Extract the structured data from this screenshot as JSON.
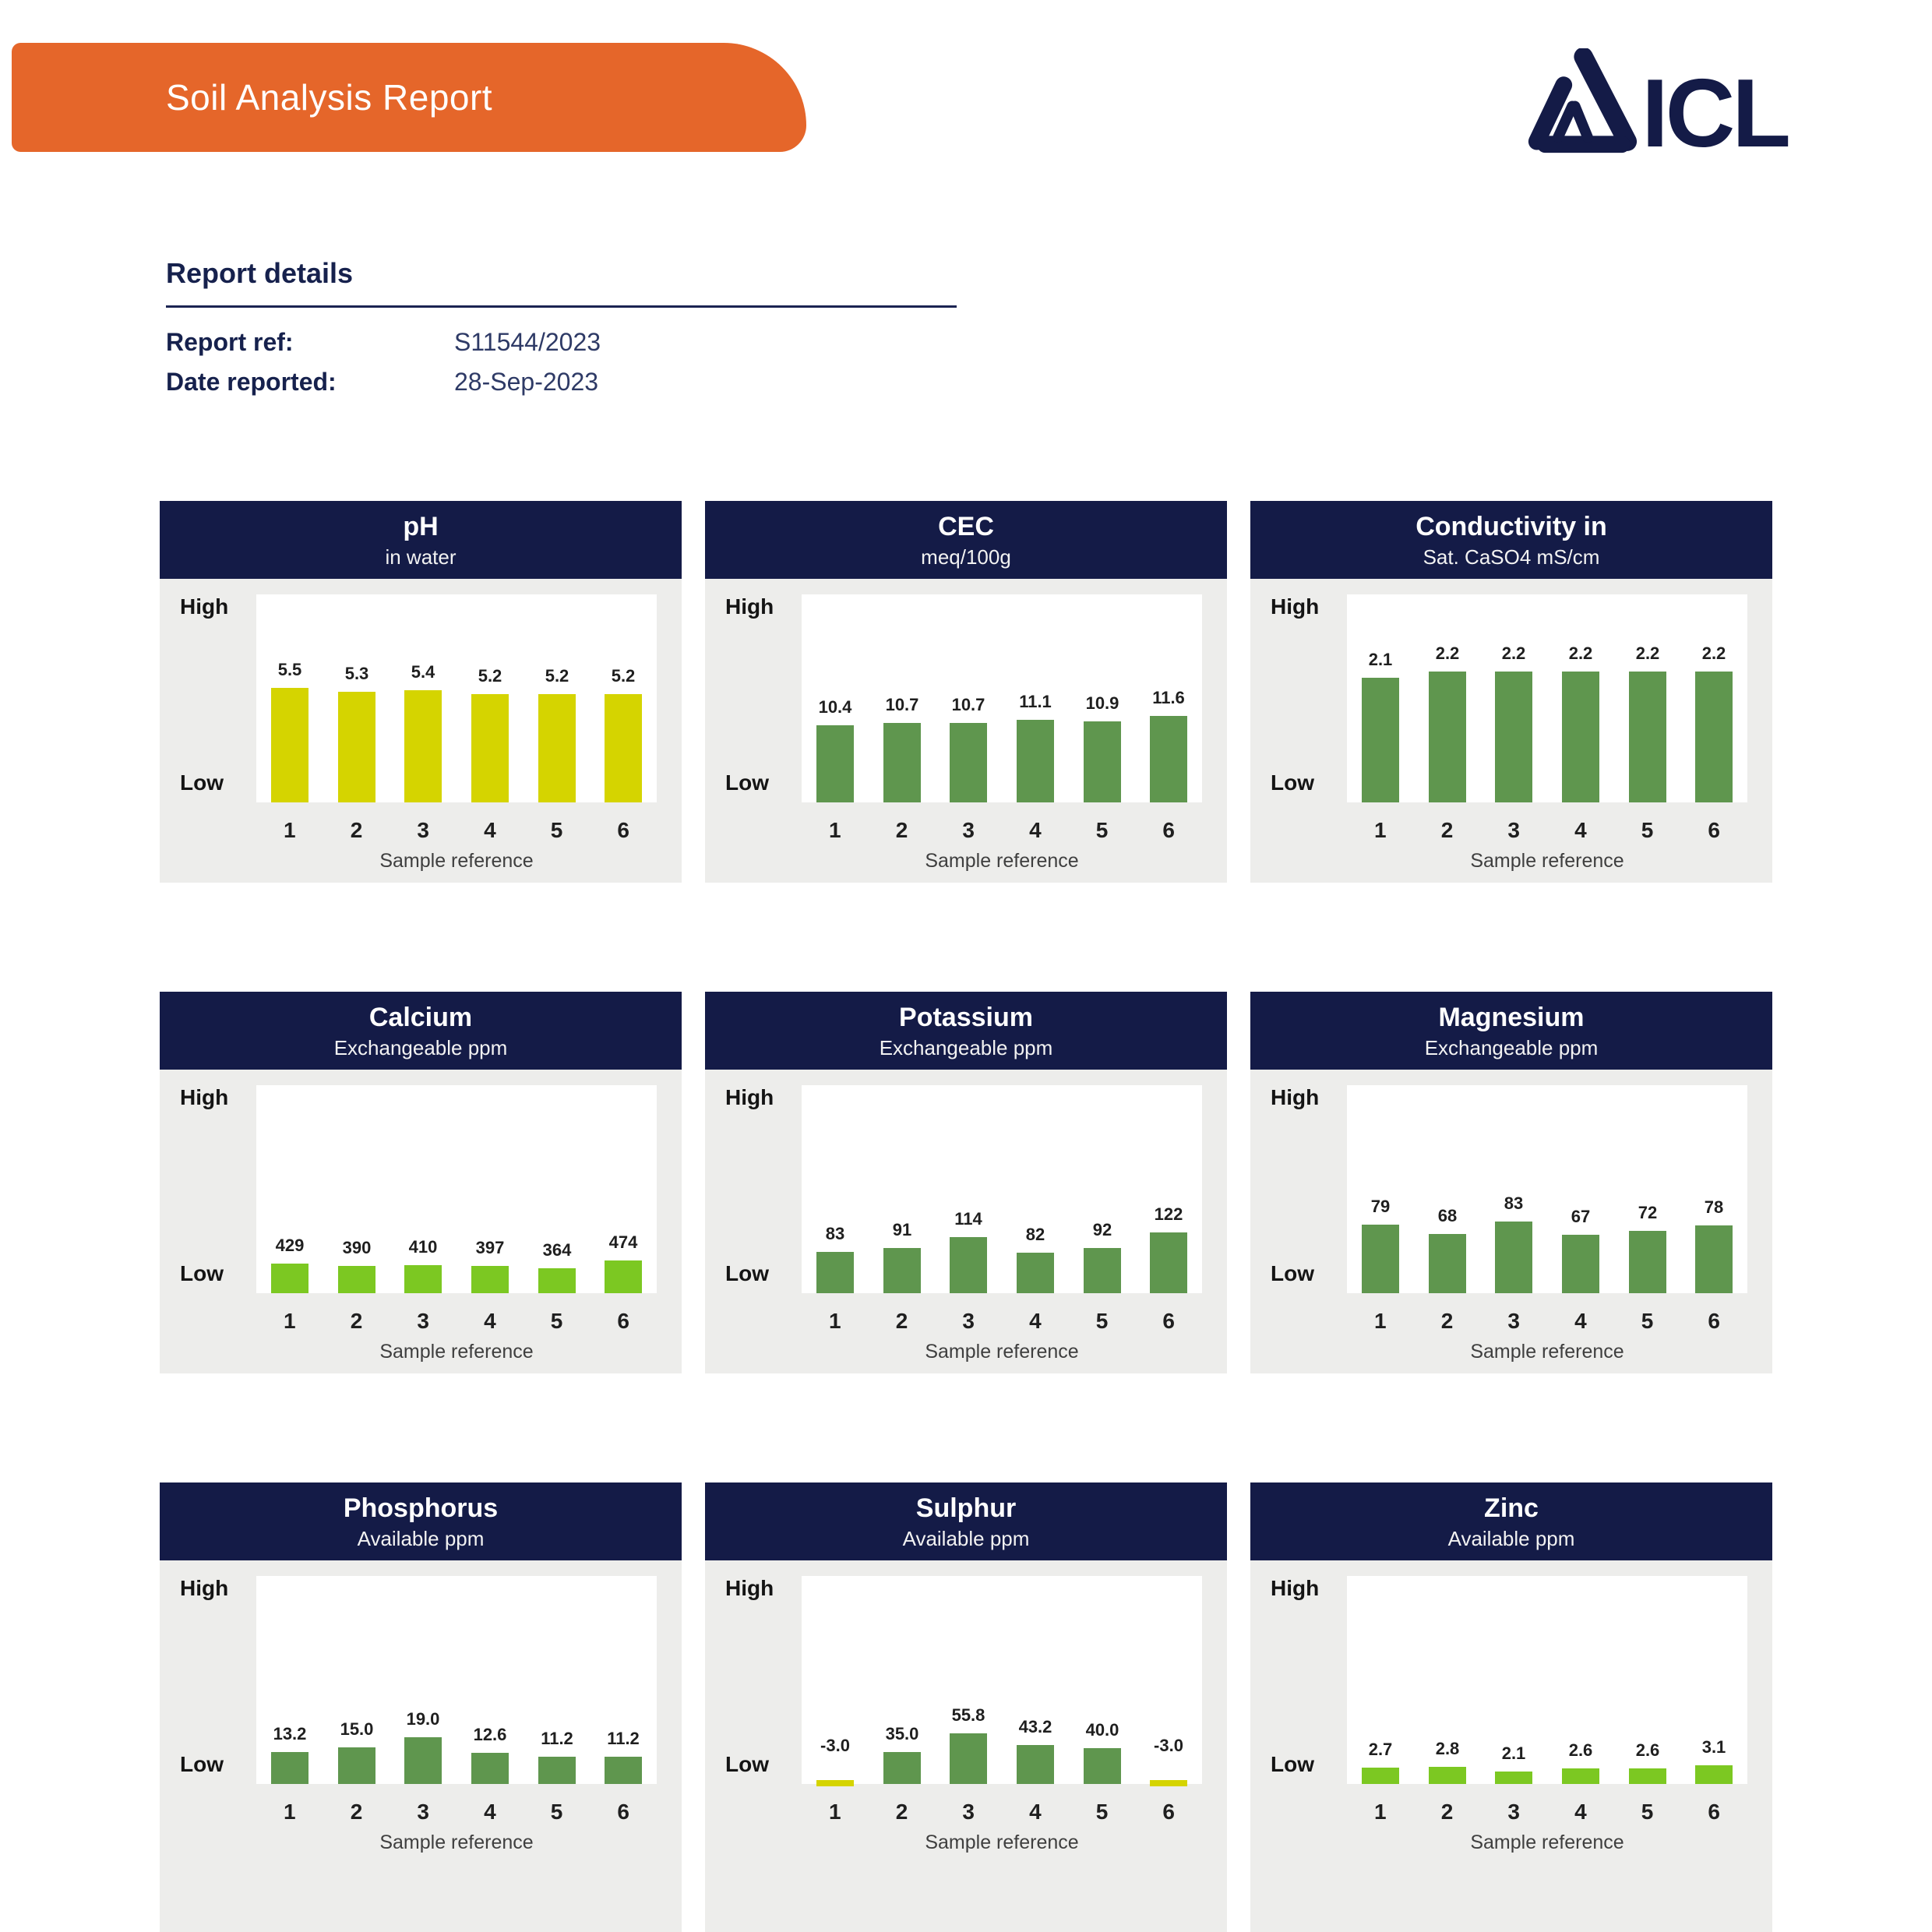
{
  "page": {
    "title": "Soil Analysis Report"
  },
  "logo": {
    "text": "ICL",
    "color": "#141B47"
  },
  "report_details": {
    "heading": "Report details",
    "fields": [
      {
        "label": "Report ref:",
        "value": "S11544/2023"
      },
      {
        "label": "Date reported:",
        "value": "28-Sep-2023"
      }
    ]
  },
  "axis": {
    "high": "High",
    "low": "Low",
    "xlabel": "Sample reference"
  },
  "colors": {
    "banner_orange": "#E5662A",
    "header_navy": "#141B47",
    "card_gray": "#EDEDEB",
    "green": "#5F964E",
    "lime": "#7CC822",
    "yellow": "#D5D400"
  },
  "chart_data": [
    {
      "type": "bar",
      "title": "pH",
      "subtitle": "in water",
      "categories": [
        "1",
        "2",
        "3",
        "4",
        "5",
        "6"
      ],
      "values": [
        5.5,
        5.3,
        5.4,
        5.2,
        5.2,
        5.2
      ],
      "labels": [
        "5.5",
        "5.3",
        "5.4",
        "5.2",
        "5.2",
        "5.2"
      ],
      "bar_color": "#D5D400",
      "scale_max": 10,
      "xlabel": "Sample reference",
      "y_axis_labels": [
        "Low",
        "High"
      ],
      "grid": false,
      "legend": false
    },
    {
      "type": "bar",
      "title": "CEC",
      "subtitle": "meq/100g",
      "categories": [
        "1",
        "2",
        "3",
        "4",
        "5",
        "6"
      ],
      "values": [
        10.4,
        10.7,
        10.7,
        11.1,
        10.9,
        11.6
      ],
      "labels": [
        "10.4",
        "10.7",
        "10.7",
        "11.1",
        "10.9",
        "11.6"
      ],
      "bar_color": "#5F964E",
      "scale_max": 28,
      "xlabel": "Sample reference",
      "y_axis_labels": [
        "Low",
        "High"
      ],
      "grid": false,
      "legend": false
    },
    {
      "type": "bar",
      "title": "Conductivity in",
      "subtitle": "Sat. CaSO4 mS/cm",
      "categories": [
        "1",
        "2",
        "3",
        "4",
        "5",
        "6"
      ],
      "values": [
        2.1,
        2.2,
        2.2,
        2.2,
        2.2,
        2.2
      ],
      "labels": [
        "2.1",
        "2.2",
        "2.2",
        "2.2",
        "2.2",
        "2.2"
      ],
      "bar_color": "#5F964E",
      "scale_max": 3.5,
      "xlabel": "Sample reference",
      "y_axis_labels": [
        "Low",
        "High"
      ],
      "grid": false,
      "legend": false
    },
    {
      "type": "bar",
      "title": "Calcium",
      "subtitle": "Exchangeable ppm",
      "categories": [
        "1",
        "2",
        "3",
        "4",
        "5",
        "6"
      ],
      "values": [
        429,
        390,
        410,
        397,
        364,
        474
      ],
      "labels": [
        "429",
        "390",
        "410",
        "397",
        "364",
        "474"
      ],
      "bar_color": "#7CC822",
      "scale_max": 3000,
      "xlabel": "Sample reference",
      "y_axis_labels": [
        "Low",
        "High"
      ],
      "grid": false,
      "legend": false
    },
    {
      "type": "bar",
      "title": "Potassium",
      "subtitle": "Exchangeable ppm",
      "categories": [
        "1",
        "2",
        "3",
        "4",
        "5",
        "6"
      ],
      "values": [
        83,
        91,
        114,
        82,
        92,
        122
      ],
      "labels": [
        "83",
        "91",
        "114",
        "82",
        "92",
        "122"
      ],
      "bar_color": "#5F964E",
      "scale_max": 420,
      "xlabel": "Sample reference",
      "y_axis_labels": [
        "Low",
        "High"
      ],
      "grid": false,
      "legend": false
    },
    {
      "type": "bar",
      "title": "Magnesium",
      "subtitle": "Exchangeable ppm",
      "categories": [
        "1",
        "2",
        "3",
        "4",
        "5",
        "6"
      ],
      "values": [
        79,
        68,
        83,
        67,
        72,
        78
      ],
      "labels": [
        "79",
        "68",
        "83",
        "67",
        "72",
        "78"
      ],
      "bar_color": "#5F964E",
      "scale_max": 240,
      "xlabel": "Sample reference",
      "y_axis_labels": [
        "Low",
        "High"
      ],
      "grid": false,
      "legend": false
    },
    {
      "type": "bar",
      "title": "Phosphorus",
      "subtitle": "Available ppm",
      "categories": [
        "1",
        "2",
        "3",
        "4",
        "5",
        "6"
      ],
      "values": [
        13.2,
        15.0,
        19.0,
        12.6,
        11.2,
        11.2
      ],
      "labels": [
        "13.2",
        "15.0",
        "19.0",
        "12.6",
        "11.2",
        "11.2"
      ],
      "bar_color": "#5F964E",
      "scale_max": 85,
      "xlabel": "Sample reference",
      "y_axis_labels": [
        "Low",
        "High"
      ],
      "grid": false,
      "legend": false
    },
    {
      "type": "bar",
      "title": "Sulphur",
      "subtitle": "Available ppm",
      "categories": [
        "1",
        "2",
        "3",
        "4",
        "5",
        "6"
      ],
      "values": [
        -3.0,
        35.0,
        55.8,
        43.2,
        40.0,
        -3.0
      ],
      "labels": [
        "-3.0",
        "35.0",
        "55.8",
        "43.2",
        "40.0",
        "-3.0"
      ],
      "bar_color": "#5F964E",
      "negative_color": "#D5D400",
      "scale_max": 230,
      "xlabel": "Sample reference",
      "y_axis_labels": [
        "Low",
        "High"
      ],
      "grid": false,
      "legend": false
    },
    {
      "type": "bar",
      "title": "Zinc",
      "subtitle": "Available ppm",
      "categories": [
        "1",
        "2",
        "3",
        "4",
        "5",
        "6"
      ],
      "values": [
        2.7,
        2.8,
        2.1,
        2.6,
        2.6,
        3.1
      ],
      "labels": [
        "2.7",
        "2.8",
        "2.1",
        "2.6",
        "2.6",
        "3.1"
      ],
      "bar_color": "#7CC822",
      "scale_max": 34,
      "xlabel": "Sample reference",
      "y_axis_labels": [
        "Low",
        "High"
      ],
      "grid": false,
      "legend": false
    }
  ]
}
